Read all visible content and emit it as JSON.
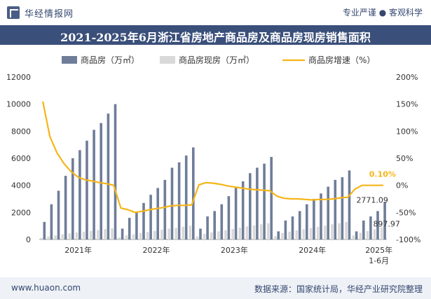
{
  "header": {
    "brand": "华经情报网",
    "tagline": "专业严谨 ● 客观科学",
    "title": "2021-2025年6月浙江省房地产商品房及商品房现房销售面积"
  },
  "footer": {
    "url": "www.huaon.com",
    "source": "数据来源：国家统计局，华经产业研究院整理"
  },
  "colors": {
    "bar_primary": "#6f7d99",
    "bar_secondary": "#d9d9d9",
    "line": "#f5b518",
    "title_bg": "#3a4f7a"
  },
  "chart_data": {
    "type": "bar",
    "title": "2021-2025年6月浙江省房地产商品房及商品房现房销售面积",
    "year_labels": [
      "2021年",
      "2022年",
      "2023年",
      "2024年",
      "2025年",
      "1-6月"
    ],
    "y_left": {
      "min": 0,
      "max": 12000,
      "ticks": [
        "12000",
        "10000",
        "8000",
        "6000",
        "4000",
        "2000",
        "0"
      ]
    },
    "y_right": {
      "min": -100,
      "max": 200,
      "ticks": [
        "200%",
        "150%",
        "100%",
        "50%",
        "0%",
        "-50%",
        "-100%"
      ]
    },
    "legend": [
      "商品房（万㎡）",
      "商品房现房（万㎡）",
      "商品房增速（%）"
    ],
    "series": [
      {
        "name": "商品房（万㎡）",
        "axis": "left",
        "values": [
          1300,
          2600,
          3600,
          4700,
          6000,
          6600,
          7300,
          8100,
          8600,
          9300,
          10000,
          800,
          1600,
          2000,
          2700,
          3300,
          3800,
          4400,
          5300,
          5700,
          6200,
          6800,
          800,
          1700,
          2100,
          2600,
          3200,
          3800,
          4300,
          4900,
          5300,
          5600,
          6100,
          600,
          1400,
          1700,
          2100,
          2600,
          3000,
          3400,
          3900,
          4400,
          4600,
          5100,
          600,
          1400,
          1700,
          2100,
          2771.09
        ]
      },
      {
        "name": "商品房现房（万㎡）",
        "axis": "left",
        "values": [
          120,
          220,
          300,
          380,
          450,
          520,
          580,
          640,
          700,
          760,
          820,
          150,
          300,
          380,
          480,
          560,
          640,
          720,
          800,
          860,
          940,
          1020,
          220,
          420,
          520,
          600,
          690,
          780,
          870,
          960,
          1040,
          1120,
          1200,
          250,
          480,
          580,
          670,
          760,
          850,
          940,
          1030,
          1120,
          1200,
          1300,
          290,
          500,
          620,
          760,
          897.97
        ]
      },
      {
        "name": "商品房增速（%）",
        "axis": "right",
        "values": [
          155,
          90,
          60,
          40,
          25,
          15,
          10,
          8,
          5,
          3,
          0,
          -42,
          -45,
          -50,
          -48,
          -45,
          -43,
          -41,
          -38,
          -37,
          -37,
          -36,
          1,
          5,
          4,
          2,
          -1,
          -3,
          -5,
          -7,
          -8,
          -9,
          -10,
          -20,
          -24,
          -25,
          -25,
          -26,
          -27,
          -26,
          -26,
          -25,
          -23,
          -22,
          -7,
          0,
          0,
          0,
          0.1
        ]
      }
    ],
    "annotations": {
      "last_primary": "2771.09",
      "last_secondary": "897.97",
      "last_growth": "0.10%"
    }
  }
}
